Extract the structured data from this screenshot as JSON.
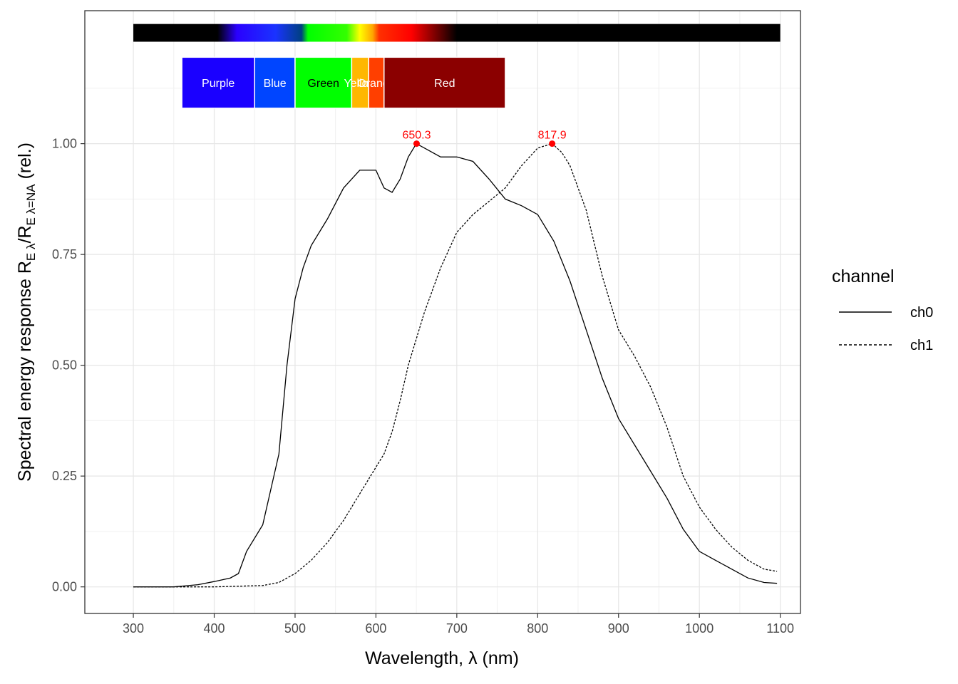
{
  "chart_data": {
    "type": "line",
    "xlabel": "Wavelength, λ (nm)",
    "ylabel_parts": {
      "prefix": "Spectral energy response ",
      "r1": "R",
      "sub1": "E λ",
      "slash": "/",
      "r2": "R",
      "sub2": "E λ=NA",
      "suffix": " (rel.)"
    },
    "xlim": [
      240,
      1125
    ],
    "ylim": [
      -0.06,
      1.3
    ],
    "x_ticks": [
      300,
      400,
      500,
      600,
      700,
      800,
      900,
      1000,
      1100
    ],
    "y_ticks": [
      0.0,
      0.25,
      0.5,
      0.75,
      1.0
    ],
    "y_tick_labels": [
      "0.00",
      "0.25",
      "0.50",
      "0.75",
      "1.00"
    ],
    "grid": true,
    "legend": {
      "title": "channel",
      "position": "right",
      "entries": [
        {
          "name": "ch0",
          "linetype": "solid"
        },
        {
          "name": "ch1",
          "linetype": "dashed"
        }
      ]
    },
    "spectrum_bar": {
      "x_range": [
        300,
        1100
      ],
      "y_range": [
        1.23,
        1.27
      ]
    },
    "color_bands": [
      {
        "label": "Purple",
        "x_range": [
          360,
          450
        ],
        "color": "#1a00ff"
      },
      {
        "label": "Blue",
        "x_range": [
          450,
          500
        ],
        "color": "#0045ff"
      },
      {
        "label": "Green",
        "x_range": [
          500,
          570
        ],
        "color": "#00ff00"
      },
      {
        "label": "Yellow",
        "x_range": [
          570,
          591
        ],
        "color": "#ffb700"
      },
      {
        "label": "Orange",
        "x_range": [
          591,
          610
        ],
        "color": "#ff3f00"
      },
      {
        "label": "Red",
        "x_range": [
          610,
          760
        ],
        "color": "#8b0000"
      }
    ],
    "color_bands_y_range": [
      1.08,
      1.195
    ],
    "series": [
      {
        "name": "ch0",
        "linetype": "solid",
        "x": [
          300,
          350,
          380,
          400,
          420,
          430,
          440,
          460,
          480,
          490,
          500,
          510,
          520,
          540,
          560,
          580,
          600,
          610,
          620,
          630,
          640,
          650,
          660,
          680,
          700,
          720,
          740,
          760,
          780,
          800,
          820,
          840,
          860,
          880,
          900,
          920,
          940,
          960,
          980,
          1000,
          1020,
          1040,
          1060,
          1080,
          1096
        ],
        "y": [
          0.0,
          0.0,
          0.005,
          0.012,
          0.02,
          0.03,
          0.08,
          0.14,
          0.3,
          0.5,
          0.65,
          0.72,
          0.77,
          0.83,
          0.9,
          0.94,
          0.94,
          0.9,
          0.89,
          0.92,
          0.97,
          1.0,
          0.99,
          0.97,
          0.97,
          0.96,
          0.92,
          0.875,
          0.86,
          0.84,
          0.78,
          0.69,
          0.58,
          0.47,
          0.38,
          0.32,
          0.26,
          0.2,
          0.13,
          0.08,
          0.06,
          0.04,
          0.02,
          0.01,
          0.008
        ]
      },
      {
        "name": "ch1",
        "linetype": "dashed",
        "x": [
          300,
          400,
          460,
          480,
          500,
          520,
          540,
          560,
          580,
          600,
          610,
          620,
          630,
          640,
          660,
          680,
          700,
          720,
          740,
          760,
          780,
          800,
          818,
          830,
          840,
          860,
          880,
          900,
          920,
          940,
          960,
          980,
          1000,
          1020,
          1040,
          1060,
          1080,
          1096
        ],
        "y": [
          0.0,
          0.0,
          0.003,
          0.01,
          0.03,
          0.06,
          0.1,
          0.15,
          0.21,
          0.27,
          0.3,
          0.35,
          0.42,
          0.5,
          0.62,
          0.72,
          0.8,
          0.84,
          0.87,
          0.9,
          0.95,
          0.99,
          1.0,
          0.98,
          0.95,
          0.85,
          0.7,
          0.58,
          0.52,
          0.45,
          0.36,
          0.25,
          0.18,
          0.13,
          0.09,
          0.06,
          0.04,
          0.035
        ]
      }
    ],
    "peaks": [
      {
        "series": "ch0",
        "x": 650.3,
        "y": 1.0,
        "label": "650.3"
      },
      {
        "series": "ch1",
        "x": 817.9,
        "y": 1.0,
        "label": "817.9"
      }
    ]
  }
}
